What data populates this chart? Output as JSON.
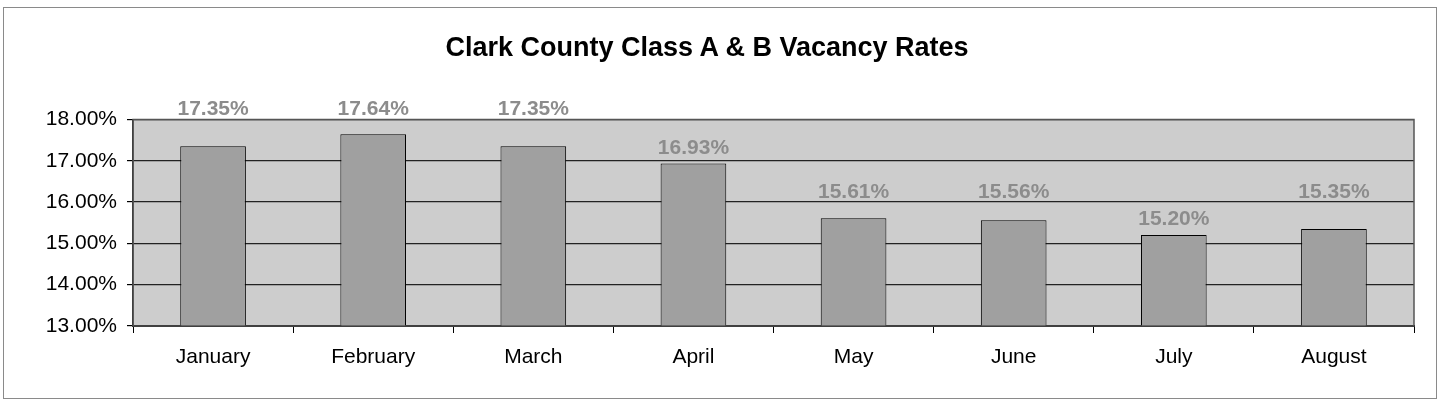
{
  "chart_data": {
    "type": "bar",
    "title": "Clark County Class A & B Vacancy Rates",
    "categories": [
      "January",
      "February",
      "March",
      "April",
      "May",
      "June",
      "July",
      "August"
    ],
    "values": [
      17.35,
      17.64,
      17.35,
      16.93,
      15.61,
      15.56,
      15.2,
      15.35
    ],
    "value_labels": [
      "17.35%",
      "17.64%",
      "17.35%",
      "16.93%",
      "15.61%",
      "15.56%",
      "15.20%",
      "15.35%"
    ],
    "color": "#a0a0a0",
    "ylim": [
      13,
      18
    ],
    "yticks": [
      {
        "value": 13,
        "label": "13.00%"
      },
      {
        "value": 14,
        "label": "14.00%"
      },
      {
        "value": 15,
        "label": "15.00%"
      },
      {
        "value": 16,
        "label": "16.00%"
      },
      {
        "value": 17,
        "label": "17.00%"
      },
      {
        "value": 18,
        "label": "18.00%"
      }
    ],
    "grid": "y"
  }
}
